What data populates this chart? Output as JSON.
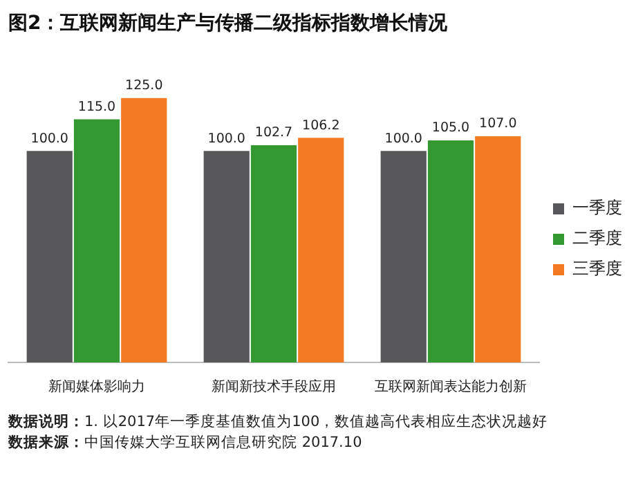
{
  "chart_data": {
    "type": "bar",
    "title": "图2：互联网新闻生产与传播二级指标指数增长情况",
    "categories": [
      "新闻媒体影响力",
      "新闻新技术手段应用",
      "互联网新闻表达能力创新"
    ],
    "series": [
      {
        "name": "一季度",
        "color": "#58585a",
        "values": [
          100.0,
          100.0,
          100.0
        ],
        "value_labels": [
          "100.0",
          "100.0",
          "100.0"
        ]
      },
      {
        "name": "二季度",
        "color": "#33982f",
        "values": [
          115.0,
          102.7,
          105.0
        ],
        "value_labels": [
          "115.0",
          "102.7",
          "105.0"
        ]
      },
      {
        "name": "三季度",
        "color": "#f27b22",
        "values": [
          125.0,
          106.2,
          107.0
        ],
        "value_labels": [
          "125.0",
          "106.2",
          "107.0"
        ]
      }
    ],
    "tick_labels": "x",
    "grid": false,
    "legend": "right",
    "annotations": [
      "数据说明：1. 以2017年一季度基值数值为100，数值越高代表相应生态状况越好",
      "数据来源：中国传媒大学互联网信息研究院 2017.10"
    ]
  }
}
